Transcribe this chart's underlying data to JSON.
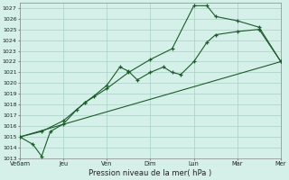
{
  "title": "",
  "xlabel": "Pression niveau de la mer( hPa )",
  "bg_color": "#d4f0e8",
  "grid_color": "#a8cfc4",
  "line_color": "#1a5c2a",
  "ylim": [
    1013,
    1027.5
  ],
  "yticks": [
    1013,
    1014,
    1015,
    1016,
    1017,
    1018,
    1019,
    1020,
    1021,
    1022,
    1023,
    1024,
    1025,
    1026,
    1027
  ],
  "xtick_labels": [
    "Ve6am",
    "Jeu",
    "Ven",
    "Dim",
    "Lun",
    "Mar",
    "Mer"
  ],
  "xtick_positions": [
    0,
    1,
    2,
    3,
    4,
    5,
    6
  ],
  "xlim": [
    0,
    6
  ],
  "series1_x": [
    0,
    0.3,
    0.5,
    0.7,
    1.0,
    1.3,
    1.5,
    1.7,
    2.0,
    2.3,
    2.5,
    2.7,
    3.0,
    3.3,
    3.5,
    3.7,
    4.0,
    4.3,
    4.5,
    5.0,
    5.5,
    6.0
  ],
  "series1_y": [
    1015.0,
    1014.3,
    1013.2,
    1015.5,
    1016.2,
    1017.5,
    1018.2,
    1018.8,
    1019.8,
    1021.5,
    1021.1,
    1020.3,
    1021.0,
    1021.5,
    1021.0,
    1020.8,
    1022.0,
    1023.8,
    1024.5,
    1024.8,
    1025.0,
    1022.0
  ],
  "series2_x": [
    0,
    0.5,
    1.0,
    1.5,
    2.0,
    2.5,
    3.0,
    3.5,
    4.0,
    4.3,
    4.5,
    5.0,
    5.5,
    6.0
  ],
  "series2_y": [
    1015.0,
    1015.5,
    1016.5,
    1018.2,
    1019.5,
    1021.0,
    1022.2,
    1023.2,
    1027.2,
    1027.2,
    1026.2,
    1025.8,
    1025.2,
    1022.0
  ],
  "series3_x": [
    0,
    6
  ],
  "series3_y": [
    1015.0,
    1022.0
  ]
}
